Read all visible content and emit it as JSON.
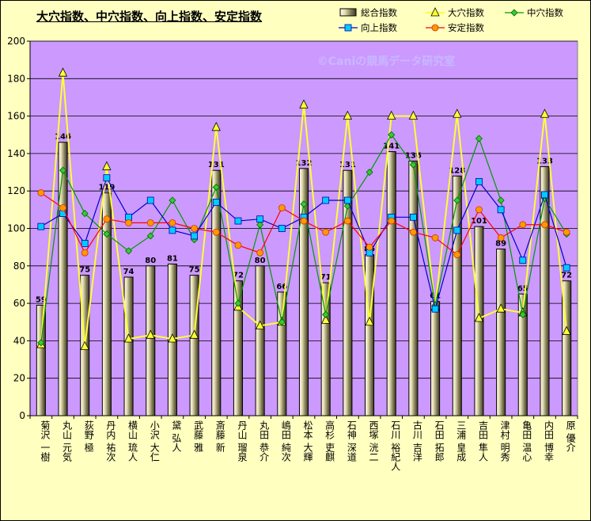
{
  "chart_data": {
    "type": "bar",
    "title": "大穴指数、中穴指数、向上指数、安定指数",
    "watermark": "©Caniの競馬データ研究室",
    "xlabel": "",
    "ylabel": "",
    "ylim": [
      0,
      200
    ],
    "yticks": [
      0,
      20,
      40,
      60,
      80,
      100,
      120,
      140,
      160,
      180,
      200
    ],
    "grid": true,
    "legend": "top-right",
    "colors": {
      "plot_bg": "#cc99ff",
      "page_bg": "#ffffc0",
      "bar_light": "#fffbe8",
      "bar_dark": "#3b3b24",
      "oana": "#ffff33",
      "chuana": "#009900",
      "kojo": "#00ccff",
      "antei": "#ff0000"
    },
    "categories": [
      "菊沢 一樹",
      "丸山 元気",
      "荻野 極",
      "丹内 祐次",
      "横山 琉人",
      "小沢 大仁",
      "黛 弘人",
      "武藤 雅",
      "斎藤 新",
      "丹山 瑠泉",
      "丸田 恭介",
      "嶋田 純次",
      "松本 大輝",
      "高杉 吏麒",
      "石神 深道",
      "西塚 洸二",
      "石川 裕紀人",
      "古川 吉洋",
      "石田 拓郎",
      "三浦 皇成",
      "吉田 隼人",
      "津村 明秀",
      "亀田 温心",
      "内田 博幸",
      "原 優介"
    ],
    "bar_labels": [
      "59",
      "146",
      "75",
      "119",
      "74",
      "80",
      "81",
      "75",
      "131",
      "72",
      "80",
      "66",
      "132",
      "71",
      "131",
      "86",
      "141",
      "136",
      "61",
      "128",
      "101",
      "89",
      "65",
      "133",
      "72"
    ],
    "series": [
      {
        "name": "総合指数",
        "kind": "bar",
        "values": [
          59,
          146,
          75,
          119,
          74,
          80,
          81,
          75,
          131,
          72,
          80,
          66,
          132,
          71,
          131,
          86,
          141,
          136,
          61,
          128,
          101,
          89,
          65,
          133,
          72
        ]
      },
      {
        "name": "大穴指数",
        "kind": "line",
        "marker": "triangle",
        "values": [
          38,
          183,
          37,
          133,
          41,
          43,
          41,
          43,
          154,
          58,
          48,
          50,
          166,
          51,
          160,
          50,
          160,
          160,
          58,
          161,
          52,
          57,
          55,
          161,
          45
        ]
      },
      {
        "name": "中穴指数",
        "kind": "line",
        "marker": "diamond",
        "values": [
          39,
          131,
          108,
          97,
          88,
          96,
          115,
          94,
          122,
          60,
          102,
          50,
          113,
          54,
          112,
          130,
          150,
          134,
          59,
          115,
          148,
          115,
          54,
          116,
          97
        ]
      },
      {
        "name": "向上指数",
        "kind": "line",
        "marker": "square",
        "values": [
          101,
          108,
          92,
          127,
          106,
          115,
          99,
          96,
          114,
          104,
          105,
          100,
          106,
          115,
          115,
          87,
          106,
          106,
          57,
          99,
          125,
          110,
          83,
          118,
          79
        ]
      },
      {
        "name": "安定指数",
        "kind": "line",
        "marker": "circle",
        "values": [
          119,
          111,
          87,
          105,
          103,
          103,
          103,
          100,
          98,
          91,
          87,
          111,
          104,
          98,
          104,
          90,
          104,
          98,
          95,
          86,
          110,
          95,
          102,
          102,
          98
        ]
      }
    ]
  }
}
